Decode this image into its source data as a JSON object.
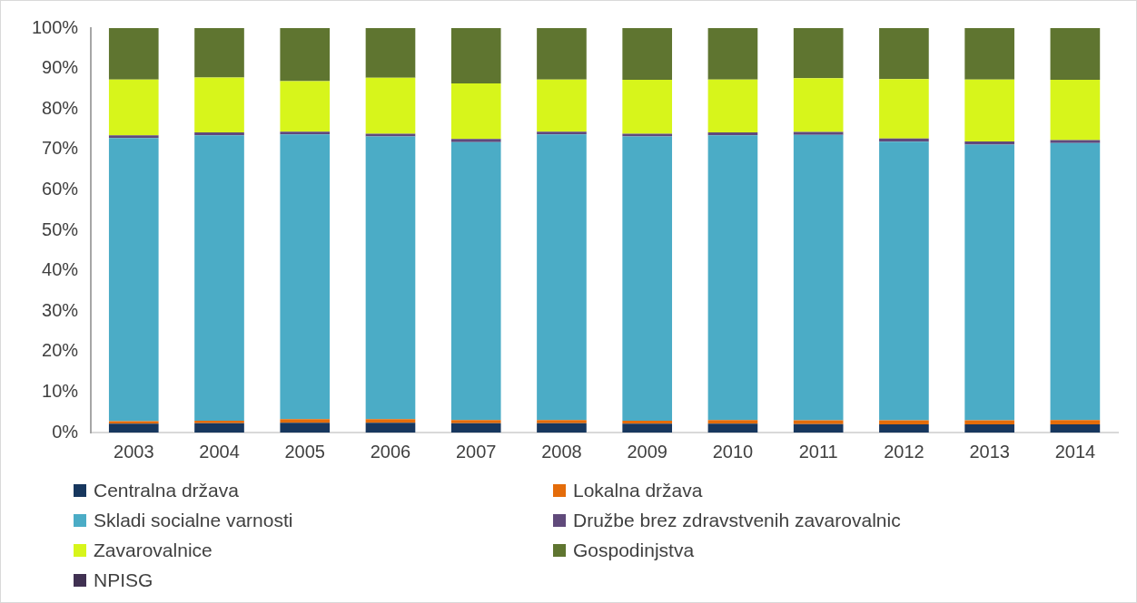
{
  "chart_data": {
    "type": "bar",
    "stacked": true,
    "categories": [
      "2003",
      "2004",
      "2005",
      "2006",
      "2007",
      "2008",
      "2009",
      "2010",
      "2011",
      "2012",
      "2013",
      "2014"
    ],
    "series": [
      {
        "name": "Centralna država",
        "color": "#17375e",
        "values": [
          2.2,
          2.3,
          2.4,
          2.4,
          2.3,
          2.3,
          2.2,
          2.2,
          2.1,
          2.0,
          2.0,
          2.0
        ]
      },
      {
        "name": "Lokalna država",
        "color": "#e46c0a",
        "values": [
          0.6,
          0.6,
          0.9,
          0.9,
          0.8,
          0.8,
          0.7,
          0.9,
          0.9,
          1.0,
          1.0,
          1.1
        ]
      },
      {
        "name": "Skladi socialne varnosti",
        "color": "#4bacc6",
        "values": [
          70.0,
          70.6,
          70.4,
          69.9,
          68.7,
          70.6,
          70.3,
          70.4,
          70.6,
          68.9,
          68.2,
          68.5
        ]
      },
      {
        "name": "Družbe brez zdravstvenih zavarovalnic",
        "color": "#604a7b",
        "values": [
          0.7,
          0.7,
          0.7,
          0.7,
          0.8,
          0.7,
          0.7,
          0.7,
          0.7,
          0.8,
          0.8,
          0.7
        ]
      },
      {
        "name": "Zavarovalnice",
        "color": "#d7f51b",
        "values": [
          13.8,
          13.6,
          12.5,
          13.8,
          13.7,
          12.9,
          13.3,
          13.1,
          13.3,
          14.7,
          15.3,
          14.9
        ]
      },
      {
        "name": "Gospodinjstva",
        "color": "#5f7530",
        "values": [
          12.7,
          12.2,
          13.1,
          12.3,
          13.7,
          12.7,
          12.8,
          12.7,
          12.4,
          12.6,
          12.7,
          12.8
        ]
      },
      {
        "name": "NPISG",
        "color": "#403152",
        "values": [
          0,
          0,
          0,
          0,
          0,
          0,
          0,
          0,
          0,
          0,
          0,
          0
        ]
      }
    ],
    "ylim": [
      0,
      100
    ],
    "yticks": [
      {
        "value": 0,
        "label": "0%"
      },
      {
        "value": 10,
        "label": "10%"
      },
      {
        "value": 20,
        "label": "20%"
      },
      {
        "value": 30,
        "label": "30%"
      },
      {
        "value": 40,
        "label": "40%"
      },
      {
        "value": 50,
        "label": "50%"
      },
      {
        "value": 60,
        "label": "60%"
      },
      {
        "value": 70,
        "label": "70%"
      },
      {
        "value": 80,
        "label": "80%"
      },
      {
        "value": 90,
        "label": "90%"
      },
      {
        "value": 100,
        "label": "100%"
      }
    ],
    "grid": false,
    "legend": "bottom"
  }
}
